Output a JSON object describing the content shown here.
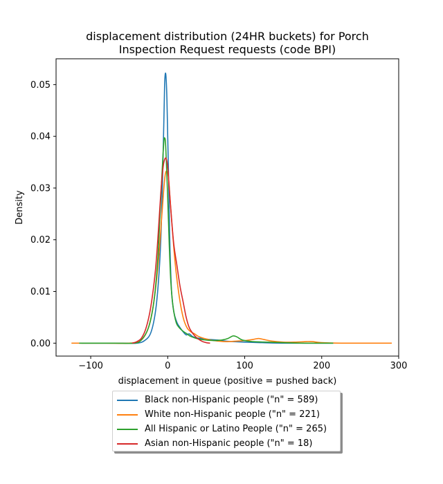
{
  "chart_data": {
    "type": "line",
    "title_lines": [
      "displacement distribution (24HR buckets) for Porch",
      "Inspection Request requests (code BPI)"
    ],
    "xlabel": "displacement in queue (positive = pushed back)",
    "ylabel": "Density",
    "xlim": [
      -145,
      300
    ],
    "ylim": [
      -0.0025,
      0.055
    ],
    "xticks": [
      -100,
      0,
      100,
      200,
      300
    ],
    "xtick_labels": [
      "−100",
      "0",
      "100",
      "200",
      "300"
    ],
    "yticks": [
      0.0,
      0.01,
      0.02,
      0.03,
      0.04,
      0.05
    ],
    "ytick_labels": [
      "0.00",
      "0.01",
      "0.02",
      "0.03",
      "0.04",
      "0.05"
    ],
    "grid": false,
    "legend_placement": "below",
    "series": [
      {
        "name": "Black non-Hispanic people (\"n\" = 589)",
        "color": "#1f77b4",
        "points": [
          [
            -112,
            0
          ],
          [
            -60,
            0
          ],
          [
            -40,
            0.0
          ],
          [
            -30,
            0.0005
          ],
          [
            -22,
            0.002
          ],
          [
            -16,
            0.006
          ],
          [
            -12,
            0.012
          ],
          [
            -9,
            0.02
          ],
          [
            -7,
            0.03
          ],
          [
            -5,
            0.043
          ],
          [
            -4,
            0.05
          ],
          [
            -3,
            0.0522
          ],
          [
            -2,
            0.051
          ],
          [
            -1,
            0.047
          ],
          [
            0,
            0.04
          ],
          [
            1,
            0.033
          ],
          [
            2,
            0.025
          ],
          [
            3,
            0.018
          ],
          [
            5,
            0.01
          ],
          [
            8,
            0.006
          ],
          [
            12,
            0.004
          ],
          [
            16,
            0.003
          ],
          [
            20,
            0.0022
          ],
          [
            24,
            0.0016
          ],
          [
            28,
            0.0018
          ],
          [
            32,
            0.0013
          ],
          [
            38,
            0.001
          ],
          [
            45,
            0.0009
          ],
          [
            55,
            0.0007
          ],
          [
            65,
            0.0006
          ],
          [
            75,
            0.0004
          ],
          [
            85,
            0.0003
          ],
          [
            100,
            0.0002
          ],
          [
            120,
            0.0001
          ],
          [
            150,
            0
          ],
          [
            180,
            0
          ],
          [
            215,
            0
          ]
        ]
      },
      {
        "name": "White non-Hispanic people (\"n\" = 221)",
        "color": "#ff7f0e",
        "points": [
          [
            -125,
            0
          ],
          [
            -80,
            0
          ],
          [
            -50,
            0.0
          ],
          [
            -35,
            0.0005
          ],
          [
            -25,
            0.003
          ],
          [
            -18,
            0.008
          ],
          [
            -12,
            0.016
          ],
          [
            -8,
            0.024
          ],
          [
            -5,
            0.03
          ],
          [
            -3,
            0.0328
          ],
          [
            -1,
            0.0332
          ],
          [
            1,
            0.032
          ],
          [
            3,
            0.028
          ],
          [
            6,
            0.022
          ],
          [
            10,
            0.015
          ],
          [
            15,
            0.009
          ],
          [
            20,
            0.005
          ],
          [
            25,
            0.003
          ],
          [
            30,
            0.0022
          ],
          [
            35,
            0.0018
          ],
          [
            40,
            0.0013
          ],
          [
            50,
            0.0008
          ],
          [
            60,
            0.0005
          ],
          [
            75,
            0.0003
          ],
          [
            90,
            0.0004
          ],
          [
            100,
            0.0005
          ],
          [
            110,
            0.0007
          ],
          [
            118,
            0.0009
          ],
          [
            125,
            0.0007
          ],
          [
            135,
            0.0004
          ],
          [
            150,
            0.0002
          ],
          [
            165,
            0.0002
          ],
          [
            180,
            0.0003
          ],
          [
            188,
            0.0003
          ],
          [
            200,
            0.0001
          ],
          [
            230,
            0
          ],
          [
            291,
            0
          ]
        ]
      },
      {
        "name": "All Hispanic or Latino People (\"n\" = 265)",
        "color": "#2ca02c",
        "points": [
          [
            -115,
            0
          ],
          [
            -70,
            0
          ],
          [
            -45,
            0.0
          ],
          [
            -35,
            0.0005
          ],
          [
            -25,
            0.003
          ],
          [
            -18,
            0.008
          ],
          [
            -13,
            0.016
          ],
          [
            -10,
            0.025
          ],
          [
            -7,
            0.034
          ],
          [
            -5,
            0.039
          ],
          [
            -4,
            0.0397
          ],
          [
            -3,
            0.039
          ],
          [
            -2,
            0.036
          ],
          [
            0,
            0.028
          ],
          [
            2,
            0.019
          ],
          [
            4,
            0.012
          ],
          [
            7,
            0.007
          ],
          [
            11,
            0.004
          ],
          [
            15,
            0.003
          ],
          [
            20,
            0.0023
          ],
          [
            25,
            0.0018
          ],
          [
            30,
            0.0013
          ],
          [
            40,
            0.0008
          ],
          [
            50,
            0.0006
          ],
          [
            60,
            0.0005
          ],
          [
            70,
            0.0006
          ],
          [
            78,
            0.0009
          ],
          [
            85,
            0.0014
          ],
          [
            90,
            0.0012
          ],
          [
            97,
            0.0006
          ],
          [
            110,
            0.0003
          ],
          [
            130,
            0.0002
          ],
          [
            150,
            0.0001
          ],
          [
            180,
            0
          ],
          [
            215,
            0
          ]
        ]
      },
      {
        "name": "Asian non-Hispanic people (\"n\" = 18)",
        "color": "#d62728",
        "points": [
          [
            -46,
            0
          ],
          [
            -40,
            0.0003
          ],
          [
            -34,
            0.001
          ],
          [
            -28,
            0.003
          ],
          [
            -22,
            0.007
          ],
          [
            -16,
            0.014
          ],
          [
            -12,
            0.022
          ],
          [
            -9,
            0.029
          ],
          [
            -6,
            0.034
          ],
          [
            -4,
            0.0355
          ],
          [
            -2,
            0.0357
          ],
          [
            0,
            0.034
          ],
          [
            2,
            0.03
          ],
          [
            5,
            0.024
          ],
          [
            8,
            0.019
          ],
          [
            12,
            0.015
          ],
          [
            16,
            0.011
          ],
          [
            20,
            0.008
          ],
          [
            24,
            0.005
          ],
          [
            28,
            0.003
          ],
          [
            33,
            0.0018
          ],
          [
            38,
            0.001
          ],
          [
            44,
            0.0004
          ],
          [
            50,
            0.0001
          ],
          [
            55,
            0
          ]
        ]
      }
    ]
  }
}
